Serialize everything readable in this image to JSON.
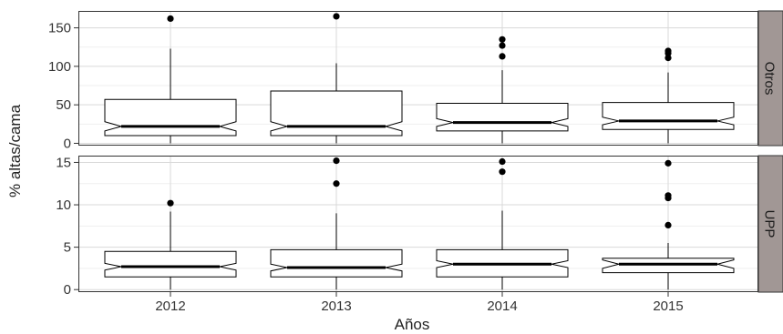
{
  "chart_data": {
    "type": "boxplot",
    "notched": true,
    "categories": [
      "2012",
      "2013",
      "2014",
      "2015"
    ],
    "xlabel": "Años",
    "ylabel": "% altas/cama",
    "grid": true,
    "facets": [
      {
        "strip_label": "Otros",
        "ylim": [
          -3,
          172
        ],
        "yticks": [
          0,
          50,
          100,
          150
        ],
        "boxes": [
          {
            "category": "2012",
            "whisker_low": 0,
            "q1": 10,
            "median": 22,
            "q3": 57,
            "whisker_high": 123,
            "notch_low": 16,
            "notch_high": 28,
            "outliers": [
              162
            ]
          },
          {
            "category": "2013",
            "whisker_low": 0,
            "q1": 10,
            "median": 22,
            "q3": 68,
            "whisker_high": 104,
            "notch_low": 16,
            "notch_high": 28,
            "outliers": [
              165
            ]
          },
          {
            "category": "2014",
            "whisker_low": 0,
            "q1": 16,
            "median": 27,
            "q3": 52,
            "whisker_high": 95,
            "notch_low": 22,
            "notch_high": 32,
            "outliers": [
              113,
              127,
              135
            ]
          },
          {
            "category": "2015",
            "whisker_low": 0,
            "q1": 18,
            "median": 29,
            "q3": 53,
            "whisker_high": 92,
            "notch_low": 24,
            "notch_high": 34,
            "outliers": [
              111,
              117,
              120
            ]
          }
        ]
      },
      {
        "strip_label": "UPP",
        "ylim": [
          -0.3,
          15.8
        ],
        "yticks": [
          0,
          5,
          10,
          15
        ],
        "boxes": [
          {
            "category": "2012",
            "whisker_low": 0,
            "q1": 1.5,
            "median": 2.7,
            "q3": 4.5,
            "whisker_high": 9.2,
            "notch_low": 2.3,
            "notch_high": 3.1,
            "outliers": [
              10.2
            ]
          },
          {
            "category": "2013",
            "whisker_low": 0,
            "q1": 1.5,
            "median": 2.6,
            "q3": 4.7,
            "whisker_high": 9.0,
            "notch_low": 2.2,
            "notch_high": 3.0,
            "outliers": [
              12.5,
              15.2
            ]
          },
          {
            "category": "2014",
            "whisker_low": 0,
            "q1": 1.5,
            "median": 3.0,
            "q3": 4.7,
            "whisker_high": 9.3,
            "notch_low": 2.6,
            "notch_high": 3.4,
            "outliers": [
              13.9,
              15.1
            ]
          },
          {
            "category": "2015",
            "whisker_low": 0,
            "q1": 2.0,
            "median": 3.0,
            "q3": 3.7,
            "whisker_high": 5.5,
            "notch_low": 2.5,
            "notch_high": 3.5,
            "outliers": [
              7.6,
              10.8,
              11.1,
              14.9
            ]
          }
        ]
      }
    ],
    "colors": {
      "box_fill": "#ffffff",
      "box_stroke": "#000000",
      "median": "#000000",
      "outlier": "#000000",
      "grid_major": "#d9d9d9",
      "grid_minor": "#efefef",
      "strip_bg": "#a19795",
      "panel_border": "#333333"
    }
  }
}
